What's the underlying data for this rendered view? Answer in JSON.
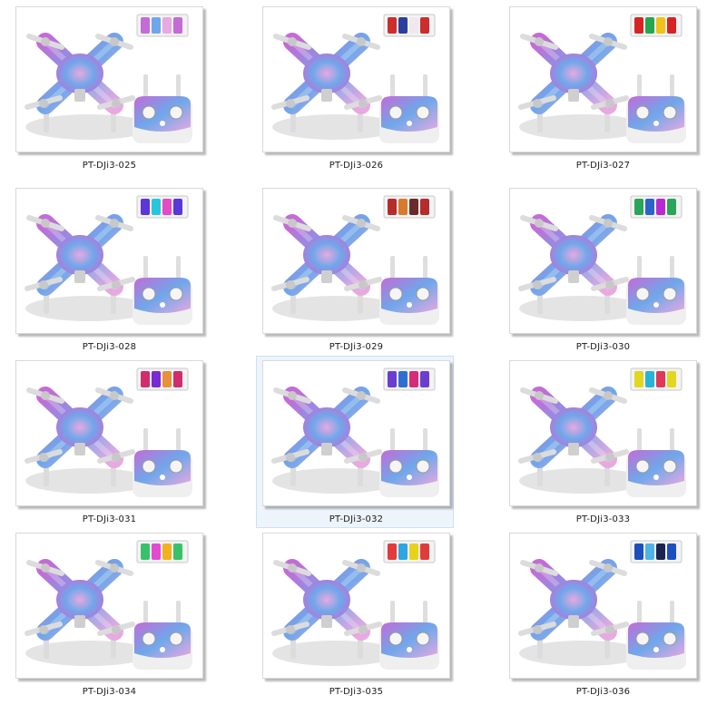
{
  "files": [
    {
      "name": "PT-DJi3-025",
      "colors": [
        "#c46bd6",
        "#6fa7ea",
        "#e8a9e0"
      ],
      "selected": false
    },
    {
      "name": "PT-DJi3-026",
      "colors": [
        "#cc2d2d",
        "#2c3f9e",
        "#f1e7ef"
      ],
      "selected": false
    },
    {
      "name": "PT-DJi3-027",
      "colors": [
        "#d62424",
        "#27a64a",
        "#f0c21a"
      ],
      "selected": false
    },
    {
      "name": "PT-DJi3-028",
      "colors": [
        "#5b36d9",
        "#28c6dd",
        "#e54ac7"
      ],
      "selected": false
    },
    {
      "name": "PT-DJi3-029",
      "colors": [
        "#b52c2c",
        "#d97a2a",
        "#6b2a2a"
      ],
      "selected": false
    },
    {
      "name": "PT-DJi3-030",
      "colors": [
        "#2aa65a",
        "#2c63c9",
        "#b82ad1"
      ],
      "selected": false
    },
    {
      "name": "PT-DJi3-031",
      "colors": [
        "#d12c6e",
        "#7a2ad1",
        "#e8913b"
      ],
      "selected": false
    },
    {
      "name": "PT-DJi3-032",
      "colors": [
        "#6a3fcf",
        "#2f6fd1",
        "#d62c7a"
      ],
      "selected": true
    },
    {
      "name": "PT-DJi3-033",
      "colors": [
        "#e2d61f",
        "#26b5d6",
        "#e0385a"
      ],
      "selected": false
    },
    {
      "name": "PT-DJi3-034",
      "colors": [
        "#37c26a",
        "#e24bd1",
        "#f0b21f"
      ],
      "selected": false
    },
    {
      "name": "PT-DJi3-035",
      "colors": [
        "#e23b3b",
        "#2ea6e0",
        "#e8d21a"
      ],
      "selected": false
    },
    {
      "name": "PT-DJi3-036",
      "colors": [
        "#1d4fbf",
        "#4eb3e8",
        "#1b2450"
      ],
      "selected": false
    }
  ]
}
